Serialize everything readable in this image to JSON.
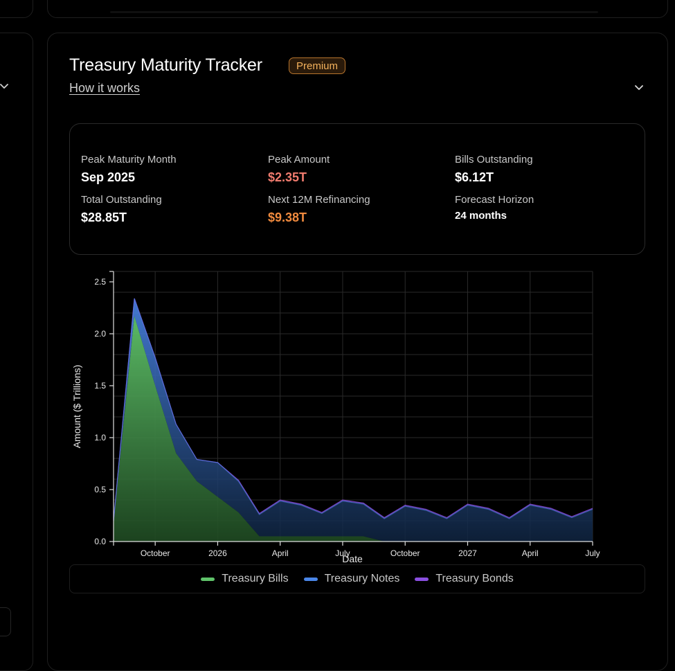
{
  "header": {
    "title": "Treasury Maturity Tracker",
    "badge": "Premium",
    "how_it_works": "How it works"
  },
  "stats": {
    "peak_month": {
      "label": "Peak Maturity Month",
      "value": "Sep 2025"
    },
    "peak_amount": {
      "label": "Peak Amount",
      "value": "$2.35T"
    },
    "bills_outstanding": {
      "label": "Bills Outstanding",
      "value": "$6.12T"
    },
    "total_outstanding": {
      "label": "Total Outstanding",
      "value": "$28.85T"
    },
    "next_12m": {
      "label": "Next 12M Refinancing",
      "value": "$9.38T"
    },
    "forecast_horizon": {
      "label": "Forecast Horizon",
      "value": "24 months"
    }
  },
  "colors": {
    "peak_amount": "#f07b6e",
    "next_12m": "#f08a3e",
    "bills": "#5fc36a",
    "notes": "#4a86e8",
    "bonds": "#8a4fe0"
  },
  "legend": {
    "bills": "Treasury Bills",
    "notes": "Treasury Notes",
    "bonds": "Treasury Bonds"
  },
  "chart_data": {
    "type": "area",
    "title": "",
    "xlabel": "Date",
    "ylabel": "Amount ($ Trillions)",
    "ylim": [
      0,
      2.6
    ],
    "yticks": [
      "0.0",
      "0.5",
      "1.0",
      "1.5",
      "2.0",
      "2.5"
    ],
    "xticks": [
      {
        "label": "October",
        "month_index": 2
      },
      {
        "label": "2026",
        "month_index": 5
      },
      {
        "label": "April",
        "month_index": 8
      },
      {
        "label": "July",
        "month_index": 11
      },
      {
        "label": "October",
        "month_index": 14
      },
      {
        "label": "2027",
        "month_index": 17
      },
      {
        "label": "April",
        "month_index": 20
      },
      {
        "label": "July",
        "month_index": 23
      }
    ],
    "x": [
      "Aug 2025",
      "Sep 2025",
      "Oct 2025",
      "Nov 2025",
      "Dec 2025",
      "Jan 2026",
      "Feb 2026",
      "Mar 2026",
      "Apr 2026",
      "May 2026",
      "Jun 2026",
      "Jul 2026",
      "Aug 2026",
      "Sep 2026",
      "Oct 2026",
      "Nov 2026",
      "Dec 2026",
      "Jan 2027",
      "Feb 2027",
      "Mar 2027",
      "Apr 2027",
      "May 2027",
      "Jun 2027",
      "Jul 2027"
    ],
    "series": [
      {
        "name": "Treasury Bills",
        "values": [
          0.18,
          2.17,
          1.5,
          0.85,
          0.58,
          0.43,
          0.28,
          0.05,
          0.05,
          0.05,
          0.05,
          0.05,
          0.05,
          0.0,
          0,
          0,
          0,
          0,
          0,
          0,
          0,
          0,
          0,
          0
        ]
      },
      {
        "name": "Treasury Notes",
        "values": [
          0.02,
          0.17,
          0.27,
          0.28,
          0.21,
          0.33,
          0.3,
          0.21,
          0.34,
          0.3,
          0.22,
          0.34,
          0.31,
          0.22,
          0.34,
          0.3,
          0.22,
          0.35,
          0.31,
          0.22,
          0.35,
          0.31,
          0.23,
          0.31
        ]
      },
      {
        "name": "Treasury Bonds",
        "values": [
          0,
          0,
          0,
          0,
          0,
          0,
          0.01,
          0.01,
          0.01,
          0.01,
          0.01,
          0.01,
          0.01,
          0.01,
          0.01,
          0.01,
          0.01,
          0.01,
          0.01,
          0.01,
          0.01,
          0.01,
          0.01,
          0.01
        ]
      }
    ]
  }
}
